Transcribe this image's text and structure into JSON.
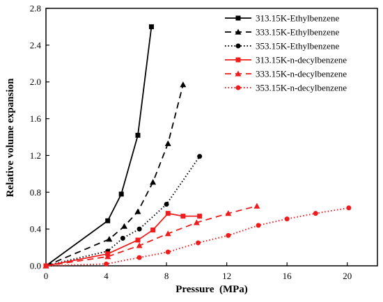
{
  "chart_data": {
    "type": "line",
    "title": "",
    "xlabel": "Pressure  (MPa)",
    "ylabel": "Relative volume expansion",
    "xlim": [
      0,
      22
    ],
    "ylim": [
      0,
      2.8
    ],
    "xticks": [
      0,
      4,
      8,
      12,
      16,
      20
    ],
    "yticks": [
      0.0,
      0.4,
      0.8,
      1.2,
      1.6,
      2.0,
      2.4,
      2.8
    ],
    "xtick_labels": [
      "0",
      "4",
      "8",
      "12",
      "16",
      "20"
    ],
    "ytick_labels": [
      "0.0",
      "0.4",
      "0.8",
      "1.2",
      "1.6",
      "2.0",
      "2.4",
      "2.8"
    ],
    "grid": false,
    "legend_position": "top-right",
    "series": [
      {
        "name": "313.15K-Ethylbenzene",
        "color": "#000000",
        "line_style": "solid",
        "marker": "square",
        "x": [
          0,
          4.1,
          5.0,
          6.1,
          7.0
        ],
        "y": [
          0,
          0.49,
          0.78,
          1.42,
          2.6
        ]
      },
      {
        "name": "333.15K-Ethylbenzene",
        "color": "#000000",
        "line_style": "dashed",
        "marker": "triangle",
        "x": [
          0,
          4.2,
          5.2,
          6.1,
          7.1,
          8.1,
          9.1
        ],
        "y": [
          0,
          0.29,
          0.43,
          0.59,
          0.91,
          1.33,
          1.97
        ]
      },
      {
        "name": "353.15K-Ethylbenzene",
        "color": "#000000",
        "line_style": "dotted",
        "marker": "circle",
        "x": [
          0,
          4.1,
          5.1,
          6.2,
          8.0,
          10.2
        ],
        "y": [
          0,
          0.16,
          0.3,
          0.4,
          0.67,
          1.19
        ]
      },
      {
        "name": "313.15K-n-decylbenzene",
        "color": "#ee1c1c",
        "line_style": "solid",
        "marker": "square",
        "x": [
          0,
          4.1,
          6.1,
          7.1,
          8.1,
          9.1,
          10.2
        ],
        "y": [
          0,
          0.13,
          0.28,
          0.39,
          0.57,
          0.54,
          0.54
        ]
      },
      {
        "name": "333.15K-n-decylbenzene",
        "color": "#ee1c1c",
        "line_style": "dashed",
        "marker": "triangle",
        "x": [
          0,
          4.1,
          6.2,
          8.1,
          10.0,
          12.1,
          14.0
        ],
        "y": [
          0,
          0.1,
          0.22,
          0.35,
          0.47,
          0.57,
          0.65
        ]
      },
      {
        "name": "353.15K-n-decylbenzene",
        "color": "#ee1c1c",
        "line_style": "dotted",
        "marker": "circle",
        "x": [
          0,
          4.0,
          6.2,
          8.1,
          10.1,
          12.1,
          14.1,
          16.0,
          17.9,
          20.1
        ],
        "y": [
          0,
          0.02,
          0.09,
          0.15,
          0.25,
          0.33,
          0.44,
          0.51,
          0.57,
          0.63
        ]
      }
    ]
  }
}
